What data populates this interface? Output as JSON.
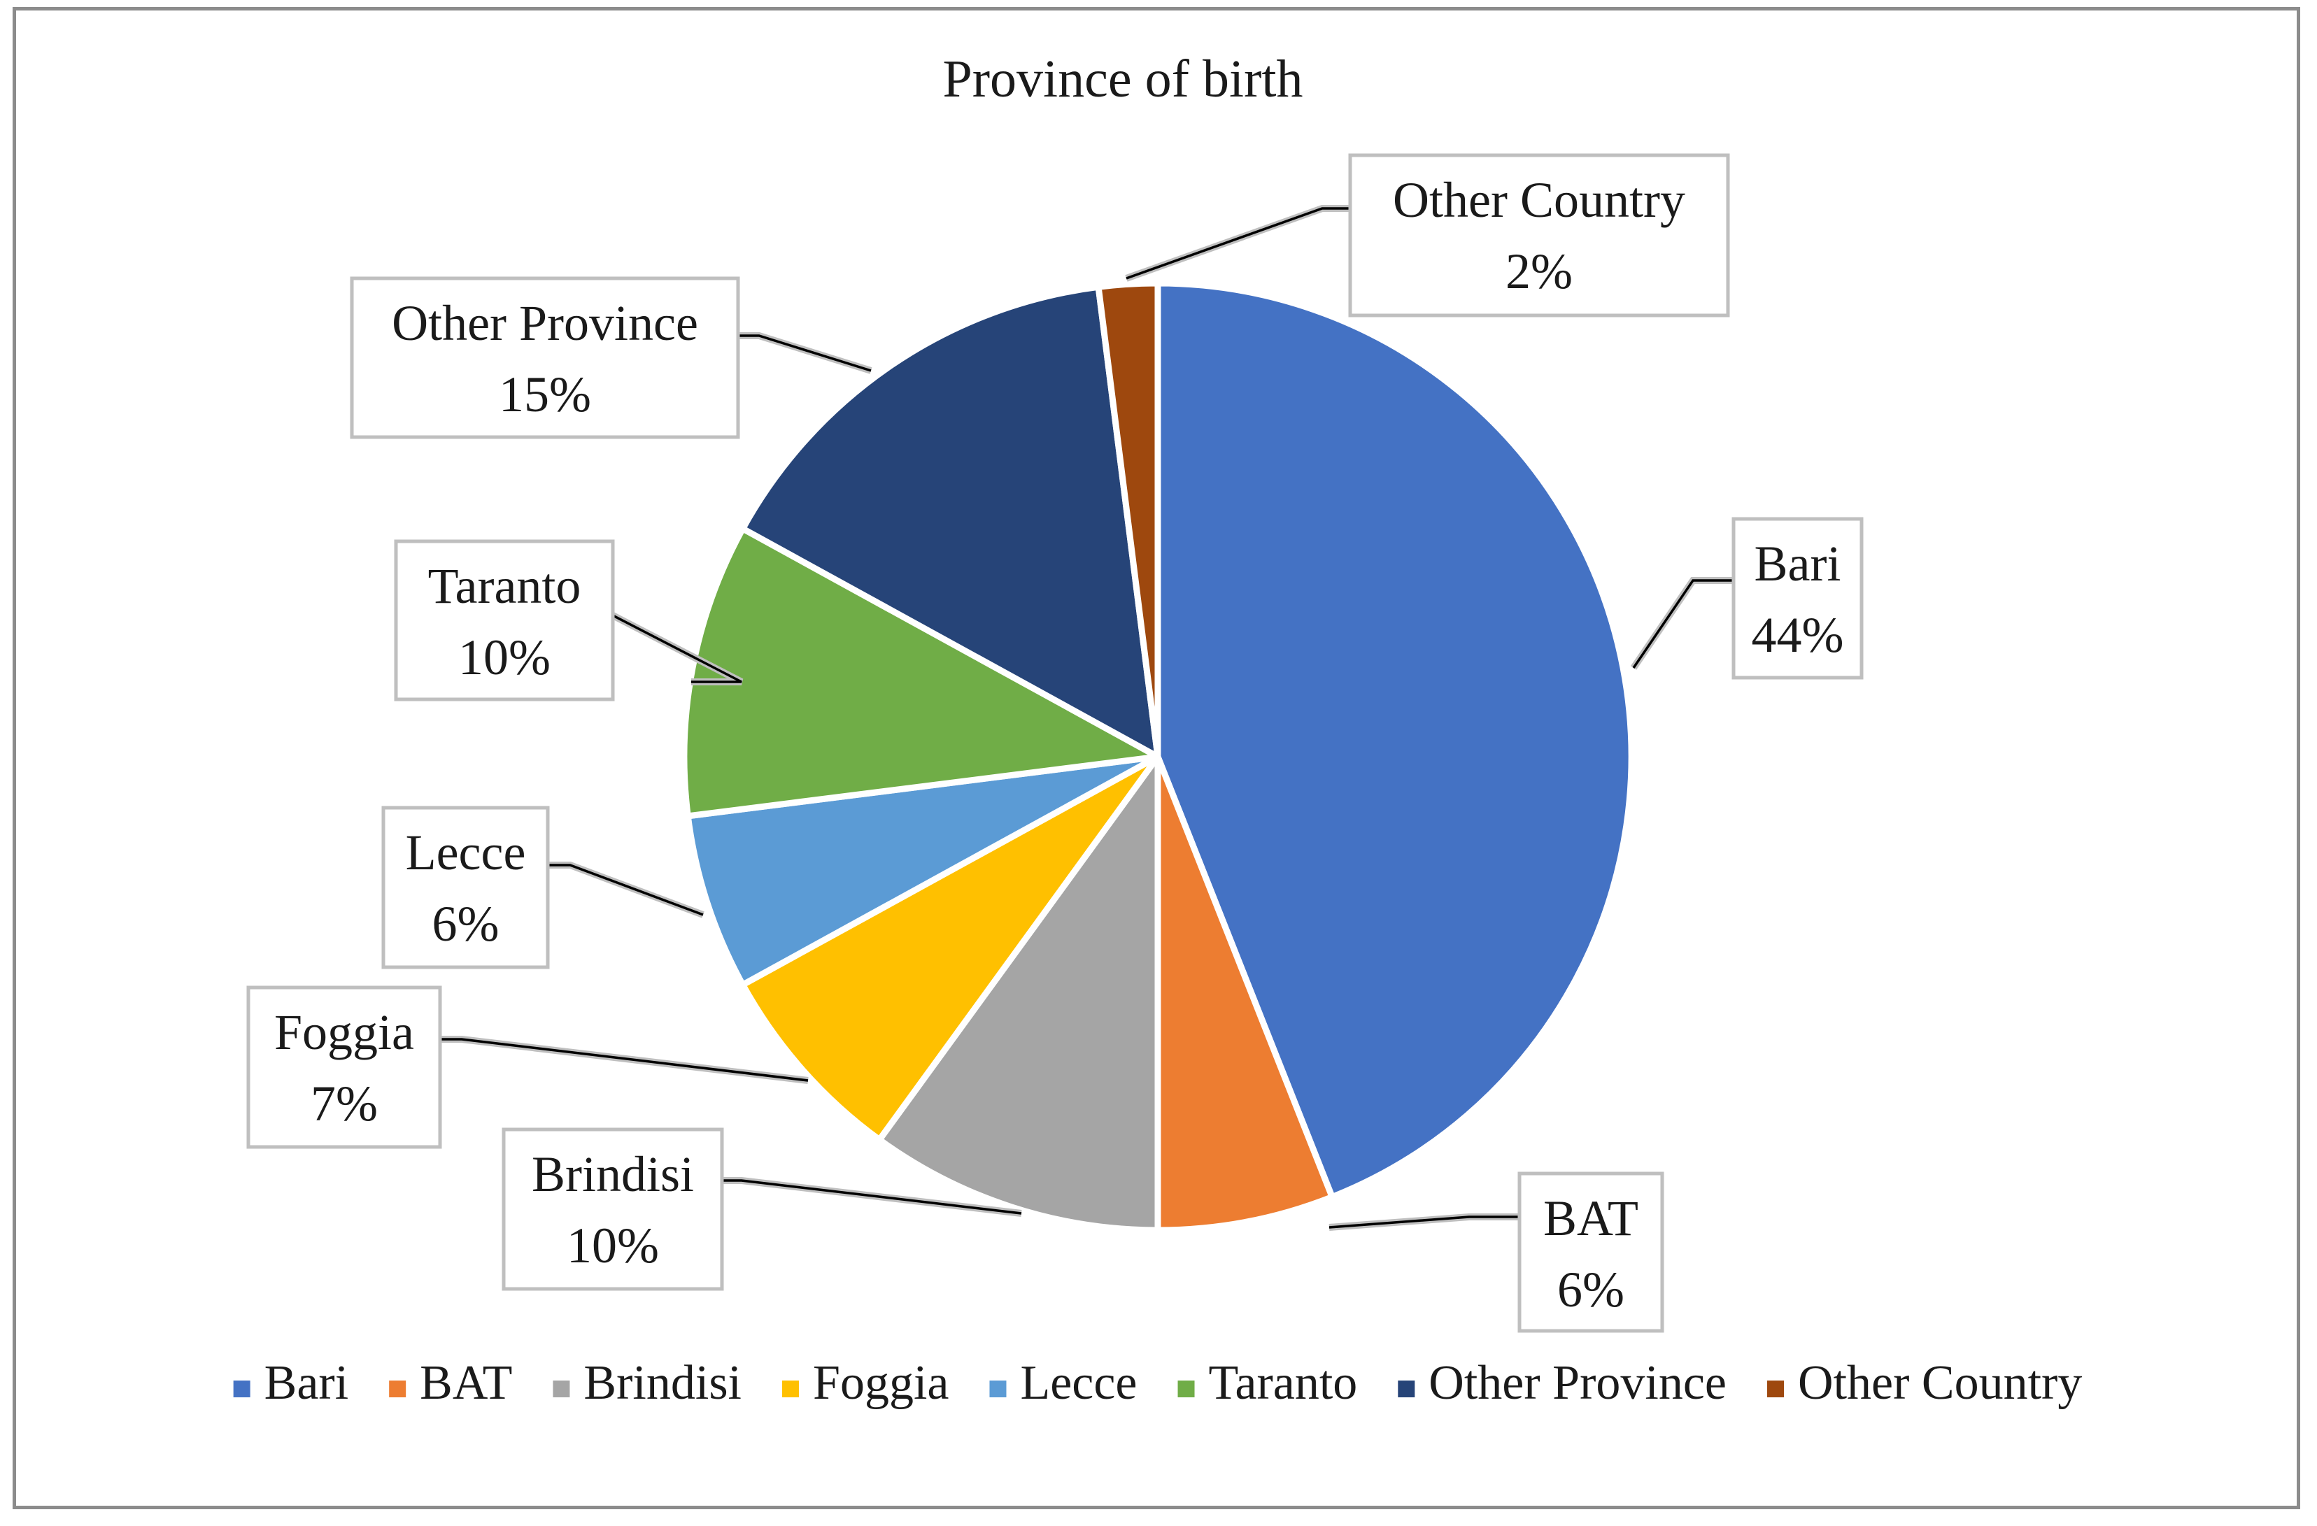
{
  "chart_data": {
    "type": "pie",
    "title": "Province of birth",
    "legend_position": "bottom",
    "slices": [
      {
        "label": "Bari",
        "value": 44,
        "pct_label": "44%",
        "color": "#4472C4"
      },
      {
        "label": "BAT",
        "value": 6,
        "pct_label": "6%",
        "color": "#ED7D31"
      },
      {
        "label": "Brindisi",
        "value": 10,
        "pct_label": "10%",
        "color": "#A5A5A5"
      },
      {
        "label": "Foggia",
        "value": 7,
        "pct_label": "7%",
        "color": "#FFC000"
      },
      {
        "label": "Lecce",
        "value": 6,
        "pct_label": "6%",
        "color": "#5B9BD5"
      },
      {
        "label": "Taranto",
        "value": 10,
        "pct_label": "10%",
        "color": "#70AD47"
      },
      {
        "label": "Other Province",
        "value": 15,
        "pct_label": "15%",
        "color": "#264478"
      },
      {
        "label": "Other Country",
        "value": 2,
        "pct_label": "2%",
        "color": "#9E480E"
      }
    ]
  }
}
